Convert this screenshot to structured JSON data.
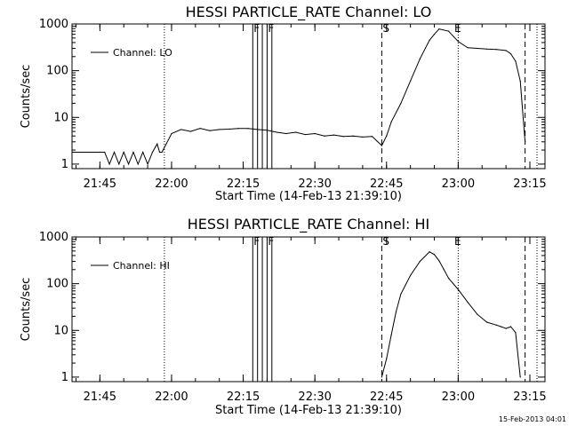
{
  "chart_data": [
    {
      "type": "line",
      "title": "HESSI PARTICLE_RATE Channel: LO",
      "xlabel": "Start Time (14-Feb-13 21:39:10)",
      "ylabel": "Counts/sec",
      "yscale": "log",
      "ylim": [
        0.8,
        1000
      ],
      "xlim": [
        "21:39:10",
        "23:18:10"
      ],
      "x_ticks": [
        "21:45",
        "22:00",
        "22:15",
        "22:30",
        "22:45",
        "23:00",
        "23:15"
      ],
      "y_ticks": [
        "1",
        "10",
        "100",
        "1000"
      ],
      "legend_placement": "top-left",
      "series": [
        {
          "name": "Channel: LO",
          "x": [
            "21:39:10",
            "21:45:00",
            "21:46:00",
            "21:47:00",
            "21:48:00",
            "21:49:00",
            "21:50:00",
            "21:51:00",
            "21:52:00",
            "21:53:00",
            "21:54:00",
            "21:55:00",
            "21:56:00",
            "21:57:00",
            "21:57:30",
            "21:58:00",
            "22:00:00",
            "22:02:00",
            "22:04:00",
            "22:06:00",
            "22:08:00",
            "22:10:00",
            "22:12:00",
            "22:14:00",
            "22:16:00",
            "22:18:00",
            "22:20:00",
            "22:22:00",
            "22:24:00",
            "22:26:00",
            "22:28:00",
            "22:30:00",
            "22:32:00",
            "22:34:00",
            "22:36:00",
            "22:38:00",
            "22:40:00",
            "22:42:00",
            "22:44:00",
            "22:45:00",
            "22:46:00",
            "22:48:00",
            "22:50:00",
            "22:52:00",
            "22:54:00",
            "22:55:00",
            "22:56:00",
            "22:58:00",
            "23:00:00",
            "23:02:00",
            "23:04:00",
            "23:06:00",
            "23:08:00",
            "23:10:00",
            "23:11:00",
            "23:12:00",
            "23:13:00",
            "23:14:00"
          ],
          "y": [
            1.8,
            1.8,
            1.8,
            1.0,
            1.8,
            1.0,
            1.8,
            1.0,
            1.8,
            1.0,
            1.8,
            1.0,
            1.8,
            2.7,
            1.8,
            1.8,
            4.5,
            5.5,
            5.0,
            5.8,
            5.2,
            5.5,
            5.6,
            5.8,
            5.8,
            5.5,
            5.3,
            4.8,
            4.5,
            4.8,
            4.3,
            4.5,
            4.0,
            4.2,
            3.9,
            4.0,
            3.8,
            3.9,
            2.5,
            4.0,
            8,
            20,
            60,
            180,
            450,
            600,
            780,
            700,
            420,
            310,
            300,
            290,
            285,
            270,
            230,
            160,
            60,
            3
          ]
        }
      ],
      "markers": [
        {
          "label": "F",
          "x": "22:17:00"
        },
        {
          "label": "F",
          "x": "22:20:00"
        },
        {
          "label": "S",
          "x": "22:44:00"
        },
        {
          "label": "E",
          "x": "22:59:00"
        }
      ]
    },
    {
      "type": "line",
      "title": "HESSI PARTICLE_RATE Channel: HI",
      "xlabel": "Start Time (14-Feb-13 21:39:10)",
      "ylabel": "Counts/sec",
      "yscale": "log",
      "ylim": [
        0.8,
        1000
      ],
      "xlim": [
        "21:39:10",
        "23:18:10"
      ],
      "x_ticks": [
        "21:45",
        "22:00",
        "22:15",
        "22:30",
        "22:45",
        "23:00",
        "23:15"
      ],
      "y_ticks": [
        "1",
        "10",
        "100",
        "1000"
      ],
      "legend_placement": "top-left",
      "series": [
        {
          "name": "Channel: HI",
          "x": [
            "22:44:00",
            "22:45:00",
            "22:46:00",
            "22:47:00",
            "22:48:00",
            "22:50:00",
            "22:52:00",
            "22:54:00",
            "22:55:00",
            "22:56:00",
            "22:57:00",
            "22:58:00",
            "23:00:00",
            "23:02:00",
            "23:04:00",
            "23:06:00",
            "23:08:00",
            "23:09:00",
            "23:10:00",
            "23:11:00",
            "23:12:00",
            "23:13:00"
          ],
          "y": [
            1,
            2.5,
            8,
            25,
            60,
            150,
            300,
            480,
            420,
            310,
            200,
            130,
            75,
            40,
            22,
            15,
            13,
            12,
            11,
            12,
            9,
            1
          ]
        }
      ],
      "markers": [
        {
          "label": "F",
          "x": "22:17:00"
        },
        {
          "label": "F",
          "x": "22:20:00"
        },
        {
          "label": "S",
          "x": "22:44:00"
        },
        {
          "label": "E",
          "x": "22:59:00"
        }
      ]
    }
  ],
  "timestamp": "15-Feb-2013 04:01"
}
